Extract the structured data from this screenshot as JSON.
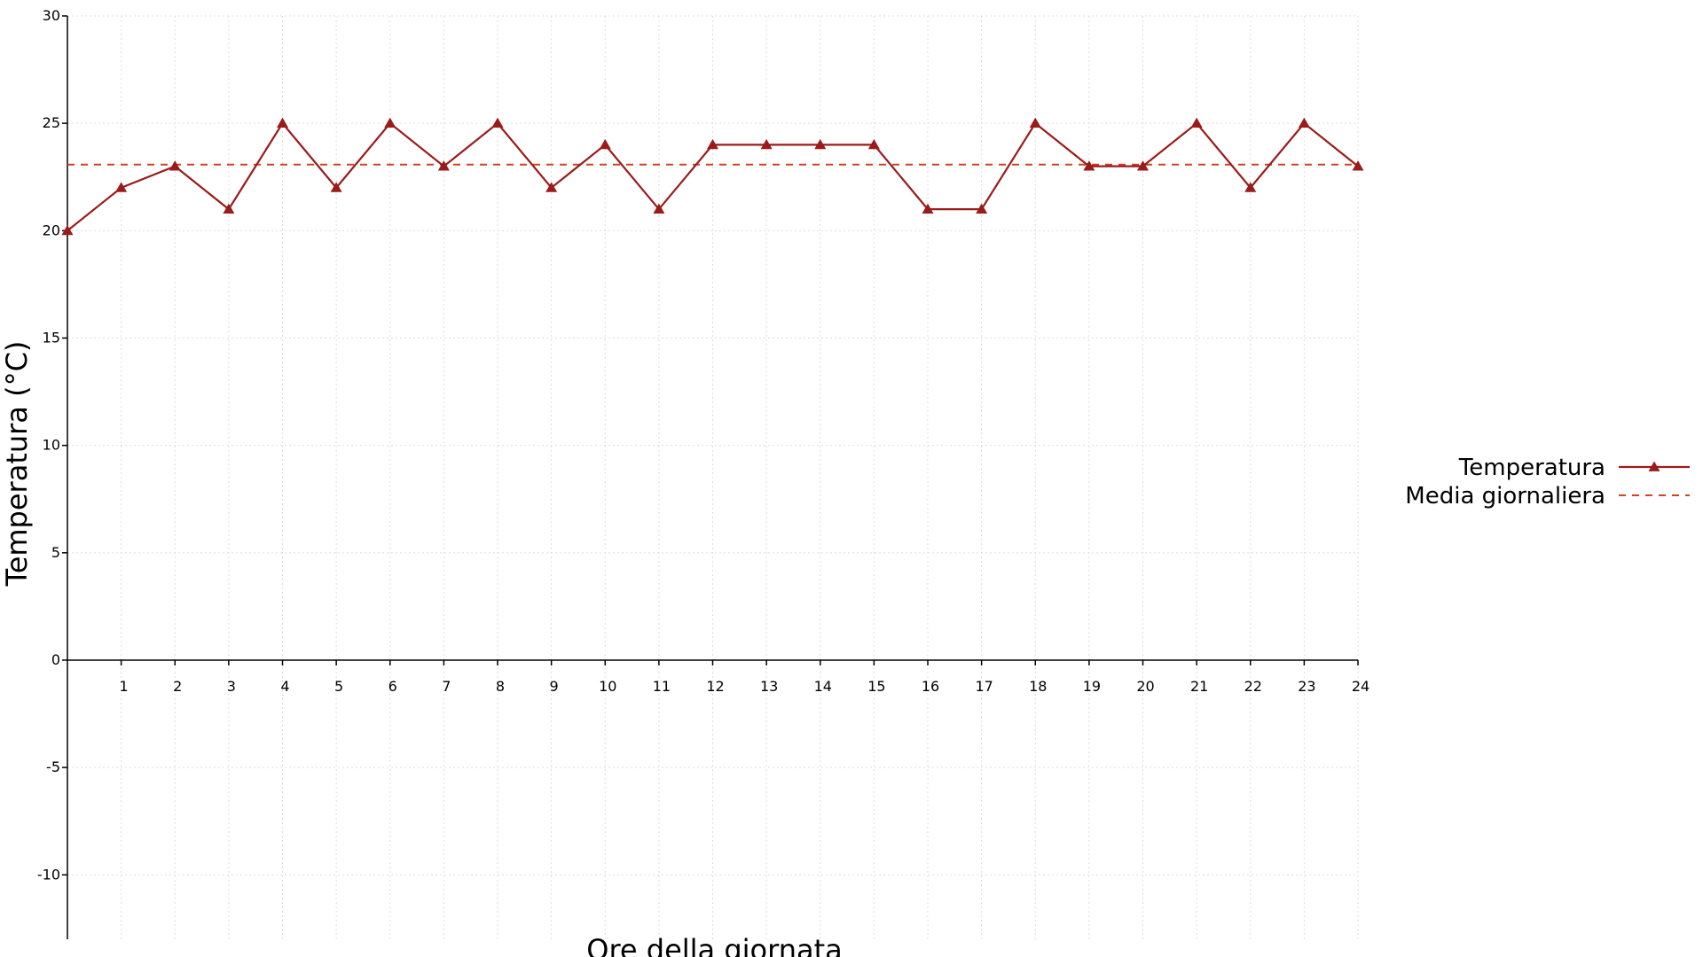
{
  "chart_data": {
    "type": "line",
    "title": "",
    "xlabel": "Ore della giornata",
    "ylabel": "Temperatura (°C)",
    "x": [
      0,
      1,
      2,
      3,
      4,
      5,
      6,
      7,
      8,
      9,
      10,
      11,
      12,
      13,
      14,
      15,
      16,
      17,
      18,
      19,
      20,
      21,
      22,
      23,
      24
    ],
    "x_tick_labels": [
      "1",
      "2",
      "3",
      "4",
      "5",
      "6",
      "7",
      "8",
      "9",
      "10",
      "11",
      "12",
      "13",
      "14",
      "15",
      "16",
      "17",
      "18",
      "19",
      "20",
      "21",
      "22",
      "23",
      "24"
    ],
    "y_tick_labels": [
      "-10",
      "-5",
      "0",
      "5",
      "10",
      "15",
      "20",
      "25",
      "30"
    ],
    "xlim": [
      0,
      24
    ],
    "ylim": [
      -13,
      30
    ],
    "grid": true,
    "legend_position": "right",
    "series": [
      {
        "name": "Temperatura",
        "values": [
          20,
          22,
          23,
          21,
          25,
          22,
          25,
          23,
          25,
          22,
          24,
          21,
          24,
          24,
          24,
          24,
          21,
          21,
          25,
          23,
          23,
          25,
          22,
          25,
          23
        ],
        "color": "#9b1b1b",
        "marker": "triangle",
        "line_style": "solid"
      },
      {
        "name": "Media giornaliera",
        "constant_value": 23.08,
        "color": "#cc4422",
        "line_style": "dashed"
      }
    ],
    "axis_color": "#000000",
    "grid_color": "#dddddd"
  }
}
